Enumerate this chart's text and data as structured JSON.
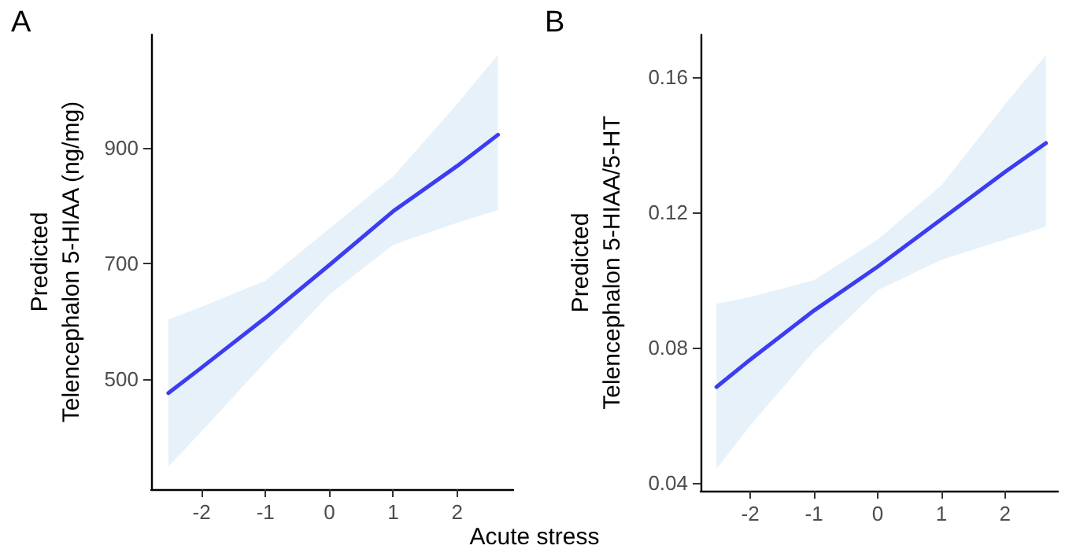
{
  "chart_data": [
    {
      "type": "line",
      "title": "A",
      "xlabel": "Acute stress",
      "ylabel": "Predicted\nTelencephalon 5-HIAA (ng/mg)",
      "xlim": [
        -2.79,
        2.88
      ],
      "xticks": [
        -2,
        -1,
        0,
        1,
        2
      ],
      "ylim": [
        310,
        1095
      ],
      "yticks": [
        500,
        700,
        900
      ],
      "grid": false,
      "marker": "none",
      "line_style": "solid",
      "series": [
        {
          "color": "#3c3cf0",
          "x": [
            -2.52,
            -2,
            -1,
            0,
            1,
            2,
            2.64
          ],
          "values": [
            476,
            520,
            606,
            697,
            790,
            868,
            922
          ],
          "lower": [
            349,
            410,
            530,
            646,
            732,
            770,
            792
          ],
          "upper": [
            603,
            625,
            670,
            760,
            850,
            975,
            1060
          ]
        }
      ]
    },
    {
      "type": "line",
      "title": "B",
      "ylabel": "Predicted\nTelencephalon 5-HIAA/5-HT",
      "xlim": [
        -2.78,
        2.83
      ],
      "xticks": [
        -2,
        -1,
        0,
        1,
        2
      ],
      "ylim": [
        0.0377,
        0.1726
      ],
      "yticks": [
        0.04,
        0.08,
        0.12,
        0.16
      ],
      "grid": false,
      "marker": "none",
      "line_style": "solid",
      "series": [
        {
          "color": "#3c3cf0",
          "x": [
            -2.53,
            -2,
            -1,
            0,
            1,
            2,
            2.64
          ],
          "values": [
            0.0684,
            0.0765,
            0.091,
            0.104,
            0.118,
            0.132,
            0.1405
          ],
          "lower": [
            0.0442,
            0.057,
            0.079,
            0.097,
            0.106,
            0.112,
            0.1158
          ],
          "upper": [
            0.093,
            0.095,
            0.1,
            0.112,
            0.128,
            0.152,
            0.1665
          ]
        }
      ]
    }
  ]
}
